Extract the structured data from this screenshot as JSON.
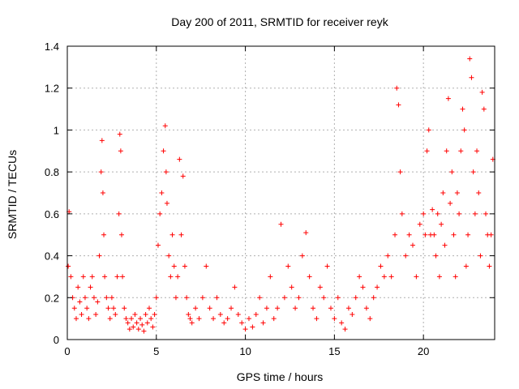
{
  "chart_data": {
    "type": "scatter",
    "title": "Day 200 of 2011, SRMTID for receiver reyk",
    "xlabel": "GPS time / hours",
    "ylabel": "SRMTID / TECUs",
    "xlim": [
      0,
      24
    ],
    "ylim": [
      0,
      1.4
    ],
    "xticks": [
      0,
      5,
      10,
      15,
      20
    ],
    "xtick_labels": [
      "0",
      "5",
      "10",
      "15",
      "20"
    ],
    "yticks": [
      0,
      0.2,
      0.4,
      0.6,
      0.8,
      1.0,
      1.2,
      1.4
    ],
    "ytick_labels": [
      "0",
      "0.2",
      "0.4",
      "0.6",
      "0.8",
      "1",
      "1.2",
      "1.4"
    ],
    "grid": true,
    "marker": "+",
    "color": "#ff0000",
    "series": [
      {
        "name": "SRMTID",
        "x": [
          0.05,
          0.1,
          0.2,
          0.3,
          0.4,
          0.5,
          0.6,
          0.7,
          0.8,
          0.9,
          1.0,
          1.1,
          1.2,
          1.3,
          1.4,
          1.5,
          1.6,
          1.7,
          1.8,
          1.9,
          1.95,
          2.0,
          2.05,
          2.1,
          2.2,
          2.3,
          2.4,
          2.5,
          2.6,
          2.7,
          2.8,
          2.9,
          2.95,
          3.0,
          3.05,
          3.1,
          3.2,
          3.3,
          3.4,
          3.5,
          3.6,
          3.7,
          3.8,
          3.9,
          4.0,
          4.1,
          4.2,
          4.3,
          4.4,
          4.5,
          4.6,
          4.7,
          4.8,
          4.9,
          5.0,
          5.1,
          5.2,
          5.3,
          5.4,
          5.5,
          5.55,
          5.6,
          5.7,
          5.8,
          5.9,
          6.0,
          6.1,
          6.2,
          6.3,
          6.4,
          6.5,
          6.6,
          6.7,
          6.8,
          6.9,
          7.0,
          7.2,
          7.4,
          7.6,
          7.8,
          8.0,
          8.2,
          8.4,
          8.6,
          8.8,
          9.0,
          9.2,
          9.4,
          9.6,
          9.8,
          10.0,
          10.2,
          10.4,
          10.6,
          10.8,
          11.0,
          11.2,
          11.4,
          11.6,
          11.8,
          12.0,
          12.2,
          12.4,
          12.6,
          12.8,
          13.0,
          13.2,
          13.4,
          13.6,
          13.8,
          14.0,
          14.2,
          14.4,
          14.6,
          14.8,
          15.0,
          15.2,
          15.4,
          15.6,
          15.8,
          16.0,
          16.2,
          16.4,
          16.6,
          16.8,
          17.0,
          17.2,
          17.4,
          17.6,
          17.8,
          18.0,
          18.2,
          18.4,
          18.5,
          18.6,
          18.7,
          18.8,
          19.0,
          19.2,
          19.4,
          19.6,
          19.8,
          20.0,
          20.1,
          20.2,
          20.3,
          20.4,
          20.5,
          20.6,
          20.7,
          20.8,
          20.9,
          21.0,
          21.1,
          21.2,
          21.3,
          21.4,
          21.5,
          21.6,
          21.7,
          21.8,
          21.9,
          22.0,
          22.1,
          22.2,
          22.3,
          22.4,
          22.5,
          22.6,
          22.7,
          22.8,
          22.9,
          23.0,
          23.1,
          23.2,
          23.3,
          23.4,
          23.5,
          23.6,
          23.7,
          23.8,
          23.9
        ],
        "y": [
          0.35,
          0.61,
          0.3,
          0.2,
          0.15,
          0.1,
          0.25,
          0.18,
          0.12,
          0.3,
          0.2,
          0.15,
          0.1,
          0.25,
          0.3,
          0.2,
          0.12,
          0.18,
          0.4,
          0.8,
          0.95,
          0.7,
          0.5,
          0.3,
          0.2,
          0.15,
          0.1,
          0.2,
          0.15,
          0.12,
          0.3,
          0.6,
          0.98,
          0.9,
          0.5,
          0.3,
          0.15,
          0.1,
          0.08,
          0.05,
          0.1,
          0.06,
          0.12,
          0.08,
          0.05,
          0.1,
          0.07,
          0.04,
          0.12,
          0.08,
          0.15,
          0.1,
          0.06,
          0.12,
          0.2,
          0.45,
          0.6,
          0.7,
          0.9,
          1.02,
          0.8,
          0.65,
          0.4,
          0.3,
          0.5,
          0.35,
          0.2,
          0.3,
          0.86,
          0.5,
          0.78,
          0.35,
          0.2,
          0.12,
          0.1,
          0.08,
          0.15,
          0.1,
          0.2,
          0.35,
          0.15,
          0.1,
          0.2,
          0.12,
          0.08,
          0.1,
          0.15,
          0.25,
          0.12,
          0.08,
          0.05,
          0.1,
          0.06,
          0.12,
          0.2,
          0.08,
          0.15,
          0.3,
          0.1,
          0.15,
          0.55,
          0.2,
          0.35,
          0.25,
          0.15,
          0.2,
          0.4,
          0.51,
          0.3,
          0.15,
          0.1,
          0.25,
          0.2,
          0.35,
          0.15,
          0.1,
          0.2,
          0.08,
          0.05,
          0.15,
          0.12,
          0.2,
          0.3,
          0.25,
          0.15,
          0.1,
          0.2,
          0.25,
          0.35,
          0.3,
          0.4,
          0.3,
          0.5,
          1.2,
          1.12,
          0.8,
          0.6,
          0.4,
          0.5,
          0.45,
          0.3,
          0.55,
          0.6,
          0.5,
          0.9,
          1.0,
          0.5,
          0.62,
          0.5,
          0.4,
          0.6,
          0.3,
          0.55,
          0.7,
          0.45,
          0.9,
          1.15,
          0.65,
          0.8,
          0.5,
          0.3,
          0.7,
          0.6,
          0.9,
          1.1,
          1.0,
          0.35,
          0.5,
          1.34,
          1.25,
          0.8,
          0.6,
          0.9,
          0.7,
          0.4,
          1.18,
          1.1,
          0.6,
          0.5,
          0.35,
          0.5,
          0.86
        ]
      }
    ]
  }
}
